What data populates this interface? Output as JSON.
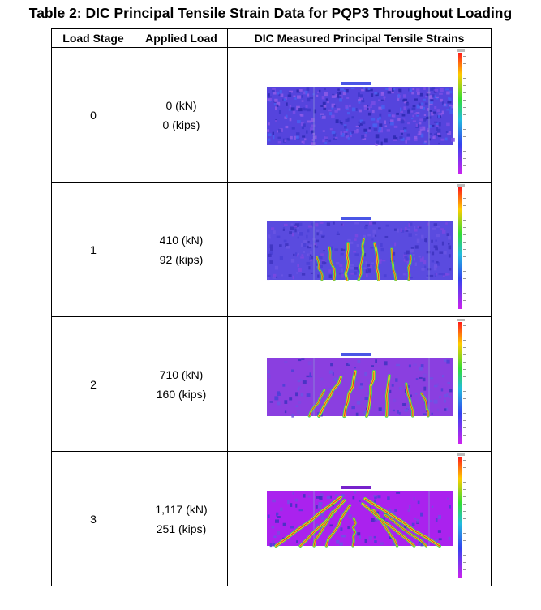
{
  "title": "Table 2: DIC Principal Tensile Strain Data for PQP3 Throughout Loading",
  "columns": [
    "Load Stage",
    "Applied Load",
    "DIC Measured Principal Tensile Strains"
  ],
  "rows": [
    {
      "stage": "0",
      "load_kn": "0 (kN)",
      "load_kips": "0 (kips)",
      "image": "dic-strain-contour-stage-0"
    },
    {
      "stage": "1",
      "load_kn": "410 (kN)",
      "load_kips": "92 (kips)",
      "image": "dic-strain-contour-stage-1"
    },
    {
      "stage": "2",
      "load_kn": "710 (kN)",
      "load_kips": "160 (kips)",
      "image": "dic-strain-contour-stage-2"
    },
    {
      "stage": "3",
      "load_kn": "1,117 (kN)",
      "load_kips": "251 (kips)",
      "image": "dic-strain-contour-stage-3"
    }
  ]
}
